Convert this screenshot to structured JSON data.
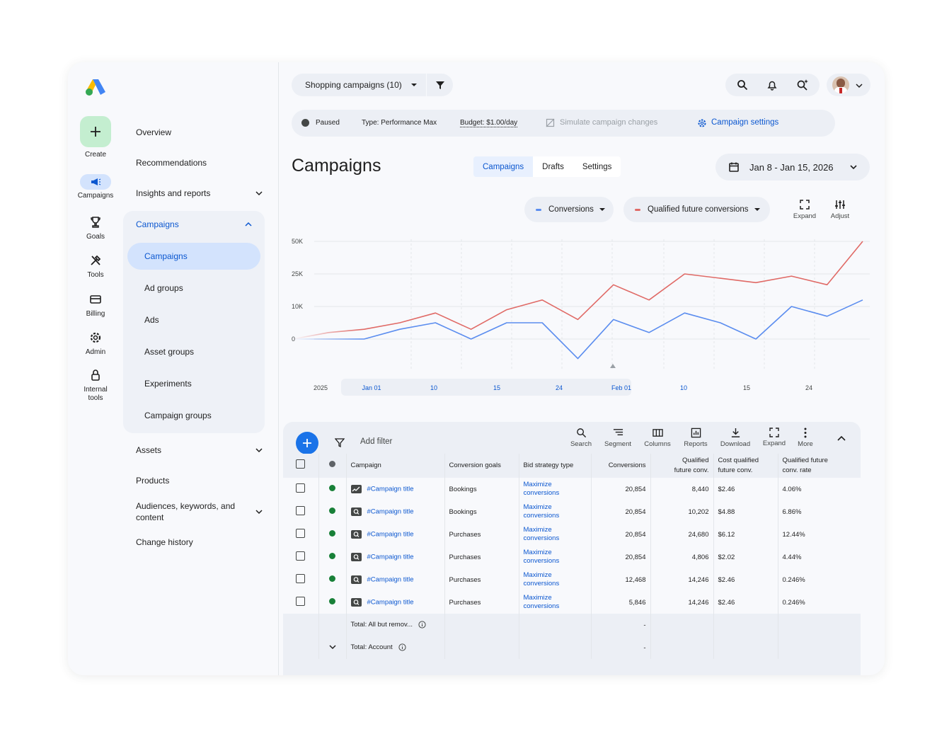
{
  "rail": {
    "create_label": "Create",
    "items": [
      {
        "label": "Campaigns",
        "icon": "megaphone-icon"
      },
      {
        "label": "Goals",
        "icon": "trophy-icon"
      },
      {
        "label": "Tools",
        "icon": "tools-icon"
      },
      {
        "label": "Billing",
        "icon": "card-icon"
      },
      {
        "label": "Admin",
        "icon": "gear-icon"
      },
      {
        "label": "Internal tools",
        "icon": "lock-icon"
      }
    ]
  },
  "nav": {
    "overview": "Overview",
    "recommendations": "Recommendations",
    "insights": "Insights and reports",
    "campaigns_group": "Campaigns",
    "sub": [
      "Campaigns",
      "Ad groups",
      "Ads",
      "Asset groups",
      "Experiments",
      "Campaign groups"
    ],
    "assets": "Assets",
    "products": "Products",
    "audiences": "Audiences, keywords, and content",
    "change_history": "Change history"
  },
  "topbar": {
    "selector": "Shopping campaigns (10)"
  },
  "status": {
    "paused": "Paused",
    "type": "Type: Performance Max",
    "budget": "Budget: $1.00/day",
    "simulate": "Simulate campaign changes",
    "settings": "Campaign settings"
  },
  "page": {
    "title": "Campaigns",
    "tabs": [
      "Campaigns",
      "Drafts",
      "Settings"
    ],
    "date_range": "Jan 8 - Jan 15, 2026"
  },
  "chart_controls": {
    "metric1": "Conversions",
    "metric2": "Qualified future conversions",
    "expand": "Expand",
    "adjust": "Adjust"
  },
  "chart_data": {
    "type": "line",
    "y_ticks": [
      "50K",
      "25K",
      "10K",
      "0"
    ],
    "x_ticks": [
      "2025",
      "Jan 01",
      "10",
      "15",
      "24",
      "Feb 01",
      "10",
      "15",
      "24"
    ],
    "colors": {
      "Conversions": "#5b8def",
      "Qualified future conversions": "#e06a66"
    },
    "series": [
      {
        "name": "Conversions",
        "values": [
          0,
          0,
          0,
          3,
          5,
          0,
          5,
          5,
          -6,
          6,
          2,
          8,
          5,
          0,
          10,
          7,
          13
        ]
      },
      {
        "name": "Qualified future conversions",
        "values": [
          0,
          2,
          3,
          5,
          8,
          3,
          9,
          13,
          6,
          20,
          13,
          25,
          23,
          21,
          24,
          20,
          50
        ]
      }
    ]
  },
  "table_toolbar": {
    "add_filter": "Add filter",
    "buttons": [
      "Search",
      "Segment",
      "Columns",
      "Reports",
      "Download",
      "Expand",
      "More"
    ]
  },
  "table": {
    "headers": {
      "campaign": "Campaign",
      "goals": "Conversion goals",
      "bid": "Bid strategy type",
      "conversions": "Conversions",
      "qfc1": "Qualified",
      "qfc2": "future conv.",
      "cost1": "Cost qualified",
      "cost2": "future conv.",
      "rate1": "Qualified future",
      "rate2": "conv. rate"
    },
    "rows": [
      {
        "name": "#Campaign title",
        "goal": "Bookings",
        "bid1": "Maximize",
        "bid2": "conversions",
        "conv": "20,854",
        "qfc": "8,440",
        "cost": "$2.46",
        "rate": "4.06%"
      },
      {
        "name": "#Campaign title",
        "goal": "Bookings",
        "bid1": "Maximize",
        "bid2": "conversions",
        "conv": "20,854",
        "qfc": "10,202",
        "cost": "$4.88",
        "rate": "6.86%"
      },
      {
        "name": "#Campaign title",
        "goal": "Purchases",
        "bid1": "Maximize",
        "bid2": "conversions",
        "conv": "20,854",
        "qfc": "24,680",
        "cost": "$6.12",
        "rate": "12.44%"
      },
      {
        "name": "#Campaign title",
        "goal": "Purchases",
        "bid1": "Maximize",
        "bid2": "conversions",
        "conv": "20,854",
        "qfc": "4,806",
        "cost": "$2.02",
        "rate": "4.44%"
      },
      {
        "name": "#Campaign title",
        "goal": "Purchases",
        "bid1": "Maximize",
        "bid2": "conversions",
        "conv": "12,468",
        "qfc": "14,246",
        "cost": "$2.46",
        "rate": "0.246%"
      },
      {
        "name": "#Campaign title",
        "goal": "Purchases",
        "bid1": "Maximize",
        "bid2": "conversions",
        "conv": "5,846",
        "qfc": "14,246",
        "cost": "$2.46",
        "rate": "0.246%"
      }
    ],
    "total1": "Total: All but remov...",
    "total2": "Total: Account",
    "total_dash": "-"
  }
}
